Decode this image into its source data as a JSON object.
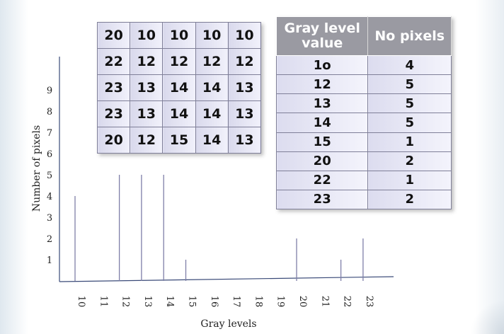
{
  "chart_data": {
    "type": "bar",
    "xlabel": "Gray levels",
    "ylabel": "Number of pixels",
    "x_ticks": [
      "10",
      "11",
      "12",
      "13",
      "14",
      "15",
      "16",
      "17",
      "18",
      "19",
      "20",
      "21",
      "22",
      "23"
    ],
    "y_ticks": [
      "1",
      "2",
      "3",
      "4",
      "5",
      "6",
      "7",
      "8",
      "9"
    ],
    "ylim": [
      0,
      10
    ],
    "categories": [
      "10",
      "12",
      "13",
      "14",
      "15",
      "20",
      "22",
      "23"
    ],
    "values": [
      4,
      5,
      5,
      5,
      1,
      2,
      1,
      2
    ],
    "bar_color": "#7f7fa8",
    "axis_color": "#3a4a78"
  },
  "pixel_matrix": [
    [
      "20",
      "10",
      "10",
      "10",
      "10"
    ],
    [
      "22",
      "12",
      "12",
      "12",
      "12"
    ],
    [
      "23",
      "13",
      "14",
      "14",
      "13"
    ],
    [
      "23",
      "13",
      "14",
      "14",
      "13"
    ],
    [
      "20",
      "12",
      "15",
      "14",
      "13"
    ]
  ],
  "histogram_table": {
    "headers": [
      "Gray level value",
      "No pixels"
    ],
    "rows": [
      [
        "1o",
        "4"
      ],
      [
        "12",
        "5"
      ],
      [
        "13",
        "5"
      ],
      [
        "14",
        "5"
      ],
      [
        "15",
        "1"
      ],
      [
        "20",
        "2"
      ],
      [
        "22",
        "1"
      ],
      [
        "23",
        "2"
      ]
    ]
  }
}
